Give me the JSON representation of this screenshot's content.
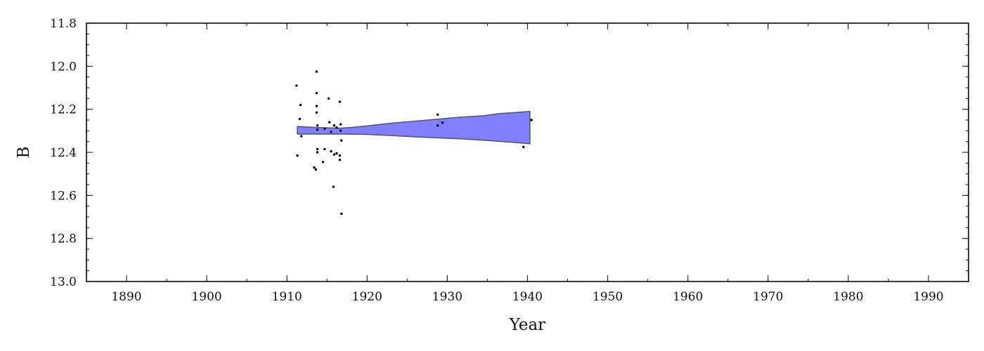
{
  "chart_data": {
    "type": "scatter",
    "xlabel": "Year",
    "ylabel": "B",
    "xlim": [
      1885,
      1995
    ],
    "ylim": [
      13.0,
      11.8
    ],
    "y_inverted": true,
    "grid": false,
    "x_ticks": [
      1890,
      1900,
      1910,
      1920,
      1930,
      1940,
      1950,
      1960,
      1970,
      1980,
      1990
    ],
    "x_tick_labels": [
      "1890",
      "1900",
      "1910",
      "1920",
      "1930",
      "1940",
      "1950",
      "1960",
      "1970",
      "1980",
      "1990"
    ],
    "y_ticks": [
      11.8,
      12.0,
      12.2,
      12.4,
      12.6,
      12.8,
      13.0
    ],
    "y_tick_labels": [
      "11.8",
      "12.0",
      "12.2",
      "12.4",
      "12.6",
      "12.8",
      "13.0"
    ],
    "band_color": "#8080ff",
    "band_edge_color": "#555577",
    "point_color": "#000000",
    "band": {
      "upper": [
        [
          1911.3,
          12.28
        ],
        [
          1913.8,
          12.285
        ],
        [
          1916.5,
          12.288
        ],
        [
          1918.0,
          12.285
        ],
        [
          1920.5,
          12.275
        ],
        [
          1923.0,
          12.265
        ],
        [
          1926.0,
          12.255
        ],
        [
          1929.0,
          12.245
        ],
        [
          1931.5,
          12.237
        ],
        [
          1934.5,
          12.23
        ],
        [
          1936.5,
          12.22
        ],
        [
          1938.5,
          12.215
        ],
        [
          1940.3,
          12.21
        ]
      ],
      "lower": [
        [
          1911.3,
          12.315
        ],
        [
          1914.0,
          12.315
        ],
        [
          1917.0,
          12.315
        ],
        [
          1920.0,
          12.317
        ],
        [
          1923.0,
          12.322
        ],
        [
          1926.0,
          12.328
        ],
        [
          1929.0,
          12.333
        ],
        [
          1932.0,
          12.338
        ],
        [
          1935.0,
          12.345
        ],
        [
          1938.0,
          12.353
        ],
        [
          1940.3,
          12.36
        ]
      ]
    },
    "points": [
      [
        1911.2,
        12.09
      ],
      [
        1911.3,
        12.415
      ],
      [
        1911.6,
        12.245
      ],
      [
        1911.7,
        12.18
      ],
      [
        1911.8,
        12.325
      ],
      [
        1913.4,
        12.47
      ],
      [
        1913.6,
        12.48
      ],
      [
        1913.7,
        12.025
      ],
      [
        1913.7,
        12.125
      ],
      [
        1913.7,
        12.185
      ],
      [
        1913.7,
        12.215
      ],
      [
        1913.8,
        12.275
      ],
      [
        1913.8,
        12.295
      ],
      [
        1913.8,
        12.385
      ],
      [
        1913.8,
        12.4
      ],
      [
        1914.5,
        12.445
      ],
      [
        1914.7,
        12.29
      ],
      [
        1914.7,
        12.385
      ],
      [
        1915.2,
        12.15
      ],
      [
        1915.3,
        12.26
      ],
      [
        1915.5,
        12.305
      ],
      [
        1915.5,
        12.395
      ],
      [
        1915.8,
        12.56
      ],
      [
        1915.9,
        12.275
      ],
      [
        1915.9,
        12.41
      ],
      [
        1916.2,
        12.285
      ],
      [
        1916.2,
        12.405
      ],
      [
        1916.6,
        12.165
      ],
      [
        1916.6,
        12.415
      ],
      [
        1916.6,
        12.435
      ],
      [
        1916.7,
        12.27
      ],
      [
        1916.7,
        12.3
      ],
      [
        1916.8,
        12.345
      ],
      [
        1916.8,
        12.685
      ],
      [
        1928.8,
        12.225
      ],
      [
        1928.8,
        12.275
      ],
      [
        1929.4,
        12.262
      ],
      [
        1939.5,
        12.375
      ],
      [
        1940.5,
        12.25
      ]
    ]
  }
}
